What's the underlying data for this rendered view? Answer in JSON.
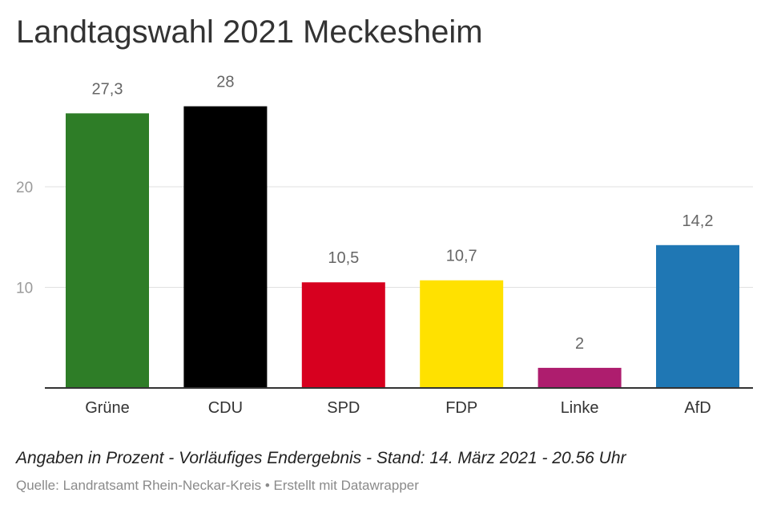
{
  "title": "Landtagswahl 2021 Meckesheim",
  "notes": "Angaben in Prozent - Vorläufiges Endergebnis - Stand: 14. März 2021 - 20.56 Uhr",
  "source": "Quelle: Landratsamt Rhein-Neckar-Kreis • Erstellt mit Datawrapper",
  "chart_data": {
    "type": "bar",
    "title": "Landtagswahl 2021 Meckesheim",
    "xlabel": "",
    "ylabel": "",
    "categories": [
      "Grüne",
      "CDU",
      "SPD",
      "FDP",
      "Linke",
      "AfD"
    ],
    "values": [
      27.3,
      28,
      10.5,
      10.7,
      2,
      14.2
    ],
    "value_labels": [
      "27,3",
      "28",
      "10,5",
      "10,7",
      "2",
      "14,2"
    ],
    "colors": [
      "#2e7d27",
      "#000000",
      "#d7001f",
      "#ffe100",
      "#ae1d6e",
      "#1f77b4"
    ],
    "yticks": [
      10,
      20
    ],
    "ytick_labels": [
      "10",
      "20"
    ],
    "ylim": [
      0,
      28
    ],
    "grid": true,
    "legend": "none"
  }
}
